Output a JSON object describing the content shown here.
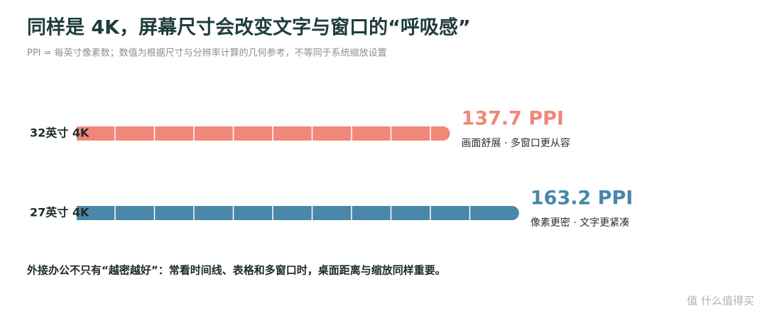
{
  "chart_data": {
    "type": "bar",
    "title": "同样是 4K，屏幕尺寸会改变文字与窗口的“呼吸感”",
    "subtitle": "PPI = 每英寸像素数；数值为根据尺寸与分辨率计算的几何参考，不等同于系统缩放设置",
    "categories": [
      "32英寸 4K",
      "27英寸 4K"
    ],
    "values": [
      137.7,
      163.2
    ],
    "value_labels": [
      "137.7 PPI",
      "163.2 PPI"
    ],
    "notes": [
      "画面舒展 · 多窗口更从容",
      "像素更密 · 文字更紧凑"
    ],
    "colors": [
      "#f08878",
      "#4a87a9"
    ],
    "xlim": [
      0,
      180
    ],
    "footnote": "外接办公不只有“越密越好”：常看时间线、表格和多窗口时，桌面距离与缩放同样重要。",
    "watermark": "值 什么值得买"
  }
}
